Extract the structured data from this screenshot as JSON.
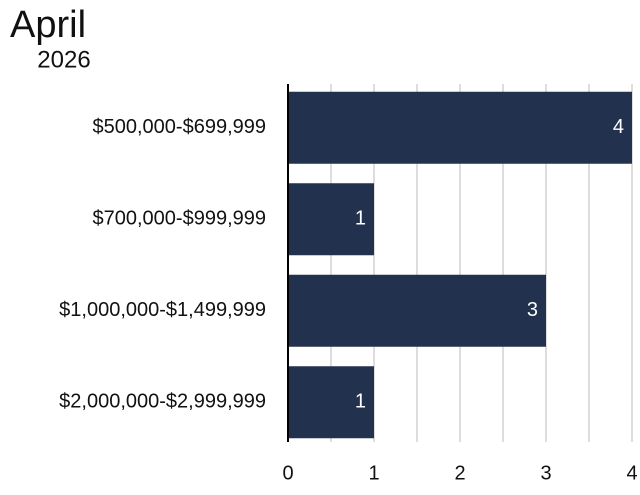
{
  "chart_data": {
    "type": "bar",
    "orientation": "horizontal",
    "title": "April",
    "subtitle": "2026",
    "categories": [
      "$500,000-$699,999",
      "$700,000-$999,999",
      "$1,000,000-$1,499,999",
      "$2,000,000-$2,999,999"
    ],
    "values": [
      4,
      1,
      3,
      1
    ],
    "color": "#22314d",
    "xlim": [
      0,
      4
    ],
    "xticks": [
      0,
      1,
      2,
      3,
      4
    ],
    "xminorticks": [
      0.5,
      1.5,
      2.5,
      3.5
    ],
    "grid": true
  }
}
